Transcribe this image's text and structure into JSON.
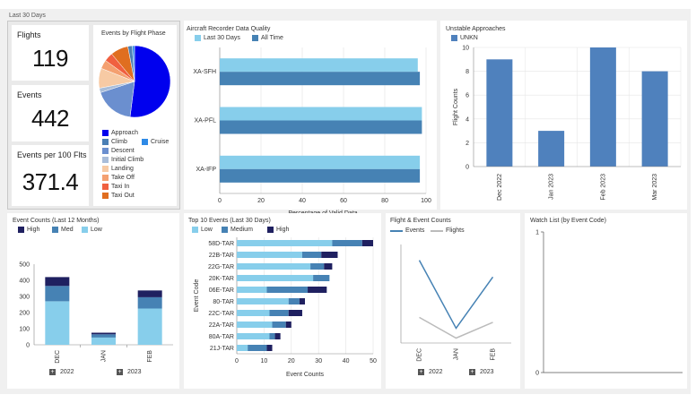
{
  "period_label": "Last 30 Days",
  "kpis": {
    "flights": {
      "label": "Flights",
      "value": "119"
    },
    "events": {
      "label": "Events",
      "value": "442"
    },
    "per100": {
      "label": "Events per 100 Flts",
      "value": "371.4"
    }
  },
  "phase": {
    "title": "Events by Flight Phase",
    "legend": [
      "Approach",
      "Cruise",
      "Climb",
      "Descent",
      "Initial Climb",
      "Landing",
      "Take Off",
      "Taxi In",
      "Taxi Out"
    ],
    "colors": {
      "Approach": "#0000ee",
      "Climb": "#4a7fb5",
      "Cruise": "#2e8ae6",
      "Descent": "#6b8fcf",
      "Initial Climb": "#a9bdd9",
      "Landing": "#f7caa4",
      "Take Off": "#f4a070",
      "Taxi In": "#f06040",
      "Taxi Out": "#e06e20"
    }
  },
  "recorder": {
    "title": "Aircraft Recorder Data Quality",
    "legend": [
      "Last 30 Days",
      "All Time"
    ],
    "colors": {
      "last30": "#87ceeb",
      "alltime": "#4682b4"
    }
  },
  "unstable": {
    "title": "Unstable Approaches",
    "legend": "UNKN",
    "color": "#4f81bd"
  },
  "evcounts": {
    "title": "Event Counts (Last 12 Months)",
    "legend": [
      "High",
      "Med",
      "Low"
    ],
    "colors": {
      "High": "#1f2060",
      "Med": "#4682b4",
      "Low": "#87ceeb"
    },
    "years": [
      "2022",
      "2023"
    ]
  },
  "top10": {
    "title": "Top 10 Events (Last 30 Days)",
    "legend": [
      "Low",
      "Medium",
      "High"
    ],
    "colors": {
      "Low": "#87ceeb",
      "Medium": "#4682b4",
      "High": "#1f2060"
    }
  },
  "fe": {
    "title": "Flight & Event Counts",
    "legend": [
      "Events",
      "Flights"
    ],
    "colors": {
      "events": "#4682b4",
      "flights": "#bbbbbb"
    },
    "years": [
      "2022",
      "2023"
    ]
  },
  "watch": {
    "title": "Watch List (by Event Code)"
  },
  "chart_data": [
    {
      "type": "pie",
      "title": "Events by Flight Phase",
      "categories": [
        "Approach",
        "Descent",
        "Initial Climb",
        "Landing",
        "Take Off",
        "Taxi In",
        "Taxi Out",
        "Climb",
        "Cruise"
      ],
      "values": [
        52,
        18,
        2,
        9,
        4,
        4,
        8,
        2,
        1
      ]
    },
    {
      "type": "bar",
      "title": "Aircraft Recorder Data Quality",
      "orientation": "horizontal",
      "categories": [
        "XA-SFH",
        "XA-PFL",
        "XA-IFP"
      ],
      "series": [
        {
          "name": "Last 30 Days",
          "values": [
            96,
            98,
            97
          ]
        },
        {
          "name": "All Time",
          "values": [
            97,
            98,
            97
          ]
        }
      ],
      "xlabel": "Percentage of Valid Data",
      "xlim": [
        0,
        100
      ],
      "xticks": [
        0,
        20,
        40,
        60,
        80,
        100
      ]
    },
    {
      "type": "bar",
      "title": "Unstable Approaches",
      "categories": [
        "Dec 2022",
        "Jan 2023",
        "Feb 2023",
        "Mar 2023"
      ],
      "series": [
        {
          "name": "UNKN",
          "values": [
            9,
            3,
            10,
            8
          ]
        }
      ],
      "ylabel": "Flight Counts",
      "ylim": [
        0,
        10
      ],
      "yticks": [
        0,
        2,
        4,
        6,
        8,
        10
      ]
    },
    {
      "type": "bar",
      "title": "Event Counts (Last 12 Months)",
      "stacked": true,
      "categories": [
        "DEC",
        "JAN",
        "FEB"
      ],
      "series": [
        {
          "name": "Low",
          "values": [
            270,
            45,
            225
          ]
        },
        {
          "name": "Med",
          "values": [
            95,
            20,
            70
          ]
        },
        {
          "name": "High",
          "values": [
            55,
            10,
            42
          ]
        }
      ],
      "ylim": [
        0,
        500
      ],
      "yticks": [
        0,
        100,
        200,
        300,
        400,
        500
      ]
    },
    {
      "type": "bar",
      "title": "Top 10 Events (Last 30 Days)",
      "orientation": "horizontal",
      "stacked": true,
      "categories": [
        "58D-TAR",
        "22B-TAR",
        "22G-TAR",
        "20K-TAR",
        "06E-TAR",
        "80-TAR",
        "22C-TAR",
        "22A-TAR",
        "80A-TAR",
        "21J-TAR"
      ],
      "series": [
        {
          "name": "Low",
          "values": [
            35,
            24,
            27,
            28,
            11,
            19,
            12,
            13,
            12,
            4
          ]
        },
        {
          "name": "Medium",
          "values": [
            11,
            7,
            5,
            6,
            15,
            4,
            7,
            5,
            2,
            7
          ]
        },
        {
          "name": "High",
          "values": [
            4,
            6,
            3,
            0,
            7,
            2,
            5,
            2,
            2,
            2
          ]
        }
      ],
      "xlabel": "Event Counts",
      "ylabel": "Event Code",
      "xlim": [
        0,
        50
      ],
      "xticks": [
        0,
        10,
        20,
        30,
        40,
        50
      ]
    },
    {
      "type": "line",
      "title": "Flight & Event Counts",
      "categories": [
        "DEC",
        "JAN",
        "FEB"
      ],
      "series": [
        {
          "name": "Events",
          "values": [
            420,
            75,
            335
          ]
        },
        {
          "name": "Flights",
          "values": [
            130,
            25,
            105
          ]
        }
      ]
    },
    {
      "type": "line",
      "title": "Watch List (by Event Code)",
      "series": [],
      "ylim": [
        0,
        1
      ],
      "yticks": [
        0,
        1
      ]
    }
  ]
}
